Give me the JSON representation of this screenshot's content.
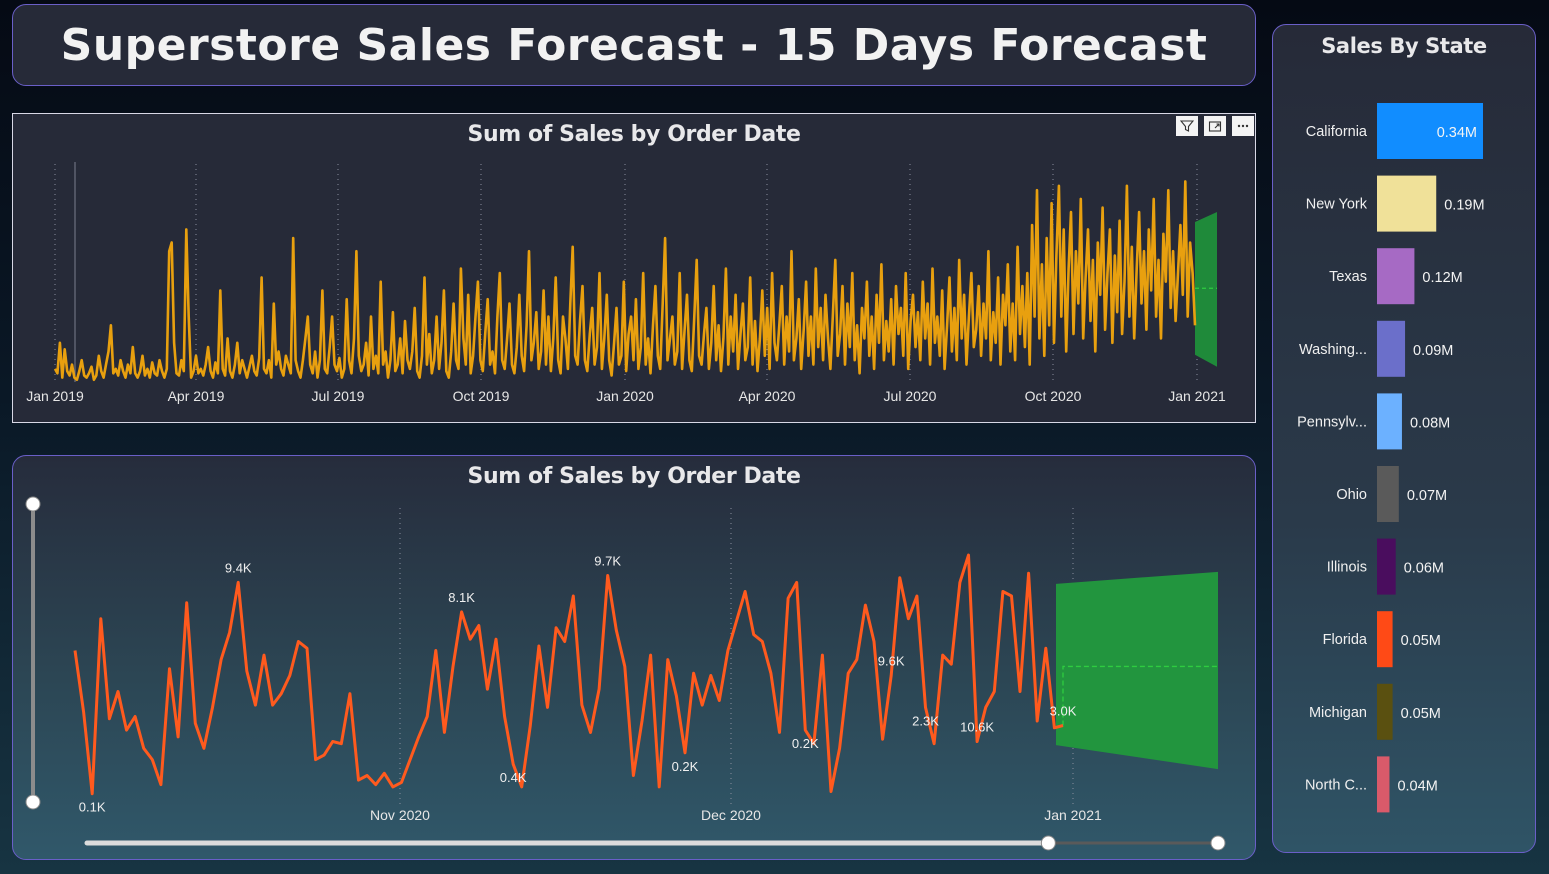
{
  "title": "Superstore Sales Forecast - 15 Days Forecast",
  "colors": {
    "line1": "#e8a00f",
    "line2": "#ff5a1e",
    "forecast": "#1f8a3a",
    "forecast_line": "#2ecc40"
  },
  "top_chart": {
    "title": "Sum of Sales by Order Date",
    "icons": [
      "filter-icon",
      "focus-mode-icon",
      "more-options-icon"
    ]
  },
  "bottom_chart": {
    "title": "Sum of Sales by Order Date"
  },
  "state_chart": {
    "title": "Sales By State"
  },
  "chart_data": [
    {
      "type": "line",
      "title": "Sum of Sales by Order Date",
      "x_ticks": [
        "Jan 2019",
        "Apr 2019",
        "Jul 2019",
        "Oct 2019",
        "Jan 2020",
        "Apr 2020",
        "Jul 2020",
        "Oct 2020",
        "Jan 2021"
      ],
      "x_range": [
        "2019-01-01",
        "2021-01-15"
      ],
      "ylim": [
        0,
        1
      ],
      "series": [
        {
          "values": [
            0.06,
            0.04,
            0.18,
            0.02,
            0.15,
            0.05,
            0.03,
            0.08,
            0.02,
            0.01,
            0.05,
            0.1,
            0.03,
            0.02,
            0.04,
            0.07,
            0.01,
            0.03,
            0.12,
            0.05,
            0.02,
            0.08,
            0.14,
            0.26,
            0.04,
            0.06,
            0.03,
            0.1,
            0.05,
            0.02,
            0.08,
            0.04,
            0.16,
            0.04,
            0.02,
            0.05,
            0.12,
            0.03,
            0.06,
            0.02,
            0.09,
            0.04,
            0.03,
            0.1,
            0.05,
            0.02,
            0.06,
            0.6,
            0.64,
            0.18,
            0.04,
            0.03,
            0.1,
            0.05,
            0.7,
            0.3,
            0.02,
            0.05,
            0.12,
            0.04,
            0.06,
            0.03,
            0.08,
            0.16,
            0.05,
            0.02,
            0.09,
            0.04,
            0.42,
            0.06,
            0.03,
            0.2,
            0.05,
            0.02,
            0.08,
            0.18,
            0.04,
            0.1,
            0.06,
            0.02,
            0.07,
            0.12,
            0.05,
            0.03,
            0.11,
            0.48,
            0.06,
            0.04,
            0.1,
            0.02,
            0.36,
            0.08,
            0.14,
            0.06,
            0.03,
            0.12,
            0.08,
            0.04,
            0.66,
            0.1,
            0.05,
            0.02,
            0.1,
            0.2,
            0.3,
            0.08,
            0.04,
            0.14,
            0.02,
            0.1,
            0.42,
            0.06,
            0.04,
            0.16,
            0.3,
            0.08,
            0.05,
            0.11,
            0.02,
            0.06,
            0.38,
            0.1,
            0.04,
            0.2,
            0.6,
            0.12,
            0.05,
            0.08,
            0.18,
            0.03,
            0.3,
            0.06,
            0.12,
            0.04,
            0.46,
            0.08,
            0.14,
            0.02,
            0.1,
            0.32,
            0.05,
            0.08,
            0.2,
            0.04,
            0.28,
            0.1,
            0.06,
            0.14,
            0.34,
            0.05,
            0.02,
            0.12,
            0.48,
            0.08,
            0.22,
            0.04,
            0.1,
            0.3,
            0.06,
            0.18,
            0.42,
            0.05,
            0.02,
            0.14,
            0.36,
            0.1,
            0.06,
            0.52,
            0.2,
            0.08,
            0.4,
            0.04,
            0.12,
            0.3,
            0.46,
            0.1,
            0.05,
            0.22,
            0.38,
            0.08,
            0.14,
            0.04,
            0.3,
            0.5,
            0.1,
            0.06,
            0.2,
            0.36,
            0.08,
            0.04,
            0.16,
            0.4,
            0.12,
            0.05,
            0.26,
            0.6,
            0.1,
            0.18,
            0.32,
            0.06,
            0.14,
            0.42,
            0.08,
            0.3,
            0.05,
            0.2,
            0.48,
            0.1,
            0.04,
            0.3,
            0.2,
            0.06,
            0.36,
            0.62,
            0.12,
            0.08,
            0.28,
            0.44,
            0.1,
            0.05,
            0.22,
            0.34,
            0.08,
            0.16,
            0.5,
            0.06,
            0.2,
            0.4,
            0.1,
            0.03,
            0.18,
            0.34,
            0.08,
            0.12,
            0.46,
            0.05,
            0.22,
            0.3,
            0.1,
            0.38,
            0.06,
            0.16,
            0.5,
            0.08,
            0.2,
            0.04,
            0.26,
            0.44,
            0.12,
            0.06,
            0.36,
            0.66,
            0.1,
            0.2,
            0.3,
            0.08,
            0.14,
            0.5,
            0.06,
            0.24,
            0.4,
            0.1,
            0.05,
            0.3,
            0.56,
            0.12,
            0.08,
            0.22,
            0.34,
            0.06,
            0.18,
            0.44,
            0.1,
            0.26,
            0.05,
            0.2,
            0.52,
            0.08,
            0.3,
            0.14,
            0.4,
            0.06,
            0.22,
            0.36,
            0.1,
            0.16,
            0.48,
            0.08,
            0.28,
            0.05,
            0.2,
            0.42,
            0.12,
            0.34,
            0.06,
            0.5,
            0.18,
            0.1,
            0.26,
            0.44,
            0.08,
            0.3,
            0.14,
            0.6,
            0.1,
            0.2,
            0.38,
            0.06,
            0.24,
            0.46,
            0.12,
            0.3,
            0.08,
            0.52,
            0.16,
            0.34,
            0.1,
            0.4,
            0.2,
            0.06,
            0.3,
            0.56,
            0.12,
            0.22,
            0.44,
            0.08,
            0.36,
            0.16,
            0.5,
            0.1,
            0.26,
            0.04,
            0.34,
            0.2,
            0.46,
            0.12,
            0.3,
            0.06,
            0.4,
            0.18,
            0.54,
            0.1,
            0.28,
            0.14,
            0.38,
            0.08,
            0.44,
            0.22,
            0.34,
            0.12,
            0.5,
            0.06,
            0.28,
            0.4,
            0.16,
            0.32,
            0.1,
            0.46,
            0.2,
            0.36,
            0.08,
            0.52,
            0.18,
            0.3,
            0.12,
            0.42,
            0.06,
            0.26,
            0.48,
            0.14,
            0.34,
            0.1,
            0.56,
            0.2,
            0.4,
            0.08,
            0.3,
            0.5,
            0.16,
            0.24,
            0.44,
            0.12,
            0.36,
            0.2,
            0.6,
            0.1,
            0.32,
            0.18,
            0.48,
            0.08,
            0.4,
            0.26,
            0.54,
            0.14,
            0.36,
            0.1,
            0.62,
            0.22,
            0.44,
            0.16,
            0.5,
            0.08,
            0.72,
            0.3,
            0.88,
            0.2,
            0.54,
            0.12,
            0.66,
            0.26,
            0.82,
            0.18,
            0.58,
            0.9,
            0.3,
            0.7,
            0.14,
            0.52,
            0.78,
            0.22,
            0.6,
            0.36,
            0.84,
            0.2,
            0.48,
            0.7,
            0.28,
            0.56,
            0.14,
            0.64,
            0.4,
            0.8,
            0.24,
            0.5,
            0.7,
            0.18,
            0.58,
            0.32,
            0.74,
            0.22,
            0.46,
            0.9,
            0.3,
            0.62,
            0.2,
            0.52,
            0.78,
            0.36,
            0.6,
            0.24,
            0.7,
            0.42,
            0.84,
            0.3,
            0.56,
            0.2,
            0.68,
            0.46,
            0.88,
            0.34,
            0.6,
            0.28,
            0.5,
            0.72,
            0.4,
            0.92,
            0.3,
            0.64,
            0.5,
            0.26
          ]
        }
      ],
      "forecast": {
        "upper": 0.78,
        "lower": 0.07,
        "mid": 0.43
      }
    },
    {
      "type": "line",
      "title": "Sum of Sales by Order Date",
      "x_ticks": [
        "Nov 2020",
        "Dec 2020",
        "Jan 2021"
      ],
      "x_range": [
        "2020-10-01",
        "2021-01-15"
      ],
      "ylim": [
        0,
        11000
      ],
      "series": [
        {
          "values": [
            6400,
            3700,
            100,
            7800,
            3400,
            4600,
            2900,
            3500,
            2100,
            1600,
            500,
            5600,
            2600,
            8500,
            3200,
            2100,
            3900,
            6000,
            7200,
            9400,
            5500,
            4000,
            6200,
            4000,
            4500,
            5300,
            6800,
            6500,
            1600,
            1800,
            2400,
            2300,
            4500,
            700,
            900,
            500,
            1000,
            400,
            600,
            1600,
            2600,
            3500,
            6400,
            2800,
            5700,
            8100,
            6900,
            7500,
            4700,
            6900,
            3500,
            1400,
            400,
            3100,
            6600,
            3900,
            7400,
            6800,
            8800,
            4000,
            2800,
            4700,
            9700,
            7300,
            5700,
            900,
            3300,
            6200,
            400,
            6000,
            4400,
            1900,
            5400,
            4000,
            5300,
            4200,
            6400,
            7700,
            9000,
            7100,
            6800,
            5400,
            2800,
            8700,
            9400,
            2900,
            2300,
            6200,
            200,
            2100,
            5400,
            6000,
            8400,
            6800,
            2500,
            5300,
            9600,
            7800,
            8800,
            3900,
            2300,
            6200,
            5800,
            9400,
            10600,
            2400,
            3900,
            4600,
            9000,
            8800,
            4600,
            9800,
            3300,
            6500,
            3000,
            3100
          ]
        }
      ],
      "forecast": {
        "upper": 9600,
        "lower": 1800,
        "mid": 5700
      },
      "data_labels": [
        "9.4K",
        "0.1K",
        "8.1K",
        "0.4K",
        "9.7K",
        "0.2K",
        "0.2K",
        "9.6K",
        "2.3K",
        "10.6K",
        "3.0K"
      ],
      "slider": {
        "start": 0,
        "end": 0.85
      }
    },
    {
      "type": "bar",
      "title": "Sales By State",
      "categories": [
        "California",
        "New York",
        "Texas",
        "Washing...",
        "Pennsylv...",
        "Ohio",
        "Illinois",
        "Florida",
        "Michigan",
        "North C..."
      ],
      "values": [
        0.34,
        0.19,
        0.12,
        0.09,
        0.08,
        0.07,
        0.06,
        0.05,
        0.05,
        0.04
      ],
      "value_labels": [
        "0.34M",
        "0.19M",
        "0.12M",
        "0.09M",
        "0.08M",
        "0.07M",
        "0.06M",
        "0.05M",
        "0.05M",
        "0.04M"
      ],
      "colors": [
        "#118dff",
        "#f0e199",
        "#a66ac4",
        "#6b6fca",
        "#6cb1ff",
        "#5a5a5a",
        "#4a0d5e",
        "#ff4a16",
        "#5a5010",
        "#d95a6a"
      ]
    }
  ]
}
